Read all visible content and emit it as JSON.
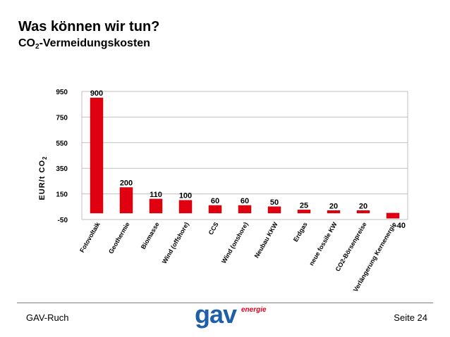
{
  "page": {
    "title": "Was können wir tun?",
    "subtitle_prefix": "CO",
    "subtitle_sub": "2",
    "subtitle_suffix": "-Vermeidungskosten"
  },
  "footer": {
    "left": "GAV-Ruch",
    "right": "Seite 24",
    "logo_main": "gav",
    "logo_sub": "energie"
  },
  "colors": {
    "bar": "#e0000f",
    "bar_edge": "#b00000",
    "grid": "#bfbfbf",
    "logo_blue": "#1f5ea8",
    "logo_red": "#e2001a"
  },
  "chart_data": {
    "type": "bar",
    "title": "",
    "xlabel": "",
    "ylabel": "EUR/t CO2",
    "ylabel_main": "EUR/t CO",
    "ylabel_sub": "2",
    "ylim": [
      -50,
      950
    ],
    "yticks": [
      -50,
      150,
      350,
      550,
      750,
      950
    ],
    "grid": true,
    "categories": [
      "Fotovoltaik",
      "Geothermie",
      "Biomasse",
      "Wind (offshore)",
      "CCS",
      "Wind (onshore)",
      "Neubau KKW",
      "Erdgas",
      "neue fossile KW",
      "CO2-Börsenpreise",
      "Verlängerung Kernenergie"
    ],
    "values": [
      900,
      200,
      110,
      100,
      60,
      60,
      50,
      25,
      20,
      20,
      -40
    ],
    "data_labels": [
      "900",
      "200",
      "110",
      "100",
      "60",
      "60",
      "50",
      "25",
      "20",
      "20",
      "-40"
    ]
  }
}
